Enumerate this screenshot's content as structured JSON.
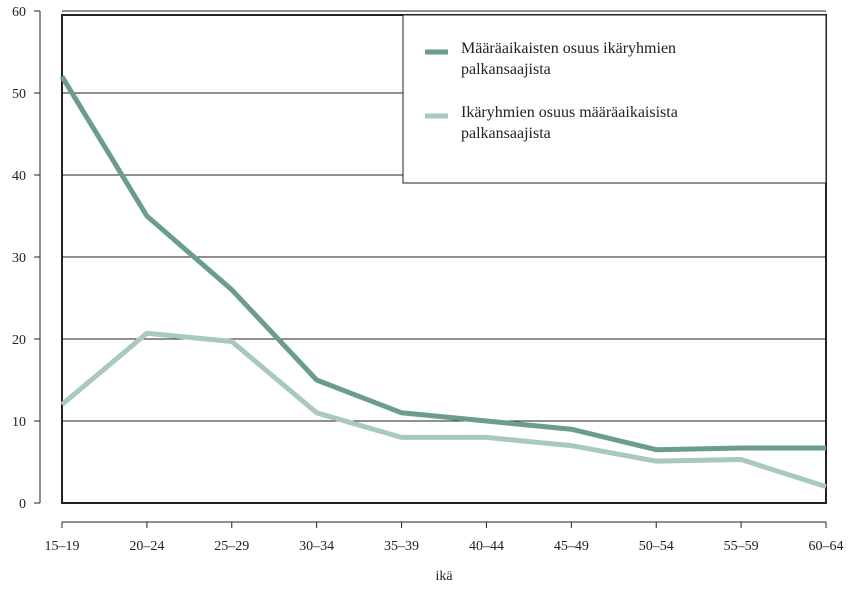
{
  "chart_data": {
    "type": "line",
    "x_label": "ikä",
    "categories": [
      "15–19",
      "20–24",
      "25–29",
      "30–34",
      "35–39",
      "40–44",
      "45–49",
      "50–54",
      "55–59",
      "60–64"
    ],
    "series": [
      {
        "name": "Määräaikaisten osuus ikäryhmien palkansaajista",
        "color": "#6a9e89",
        "values": [
          52,
          35,
          26,
          15,
          11,
          10,
          9,
          6.5,
          6.7,
          6.7
        ]
      },
      {
        "name": "Ikäryhmien osuus määräaikaisista palkansaajista",
        "color": "#a8c9bc",
        "values": [
          12,
          20.7,
          19.7,
          11,
          8,
          8,
          7,
          5.1,
          5.3,
          2
        ]
      }
    ],
    "ylim": [
      0,
      60
    ],
    "yticks": [
      0,
      10,
      20,
      30,
      40,
      50,
      60
    ],
    "grid": true,
    "legend": "top-right"
  }
}
